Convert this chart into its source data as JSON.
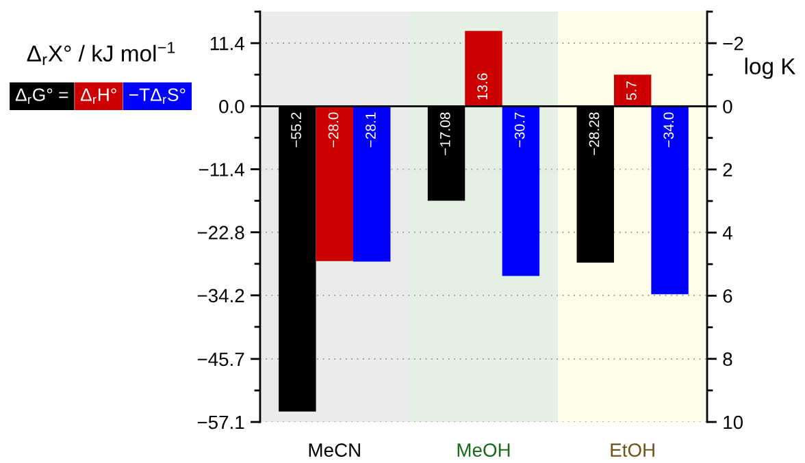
{
  "chart_data": {
    "type": "bar",
    "categories": [
      "MeCN",
      "MeOH",
      "EtOH"
    ],
    "series": [
      {
        "name": "Δ$_{r}$G° =",
        "color": "#000000",
        "values": [
          -55.2,
          -17.08,
          -28.28
        ],
        "value_labels": [
          "−55.2",
          "−17.08",
          "−28.28"
        ]
      },
      {
        "name": "Δ$_{r}$H°",
        "color": "#cc0000",
        "values": [
          -28.0,
          13.6,
          5.7
        ],
        "value_labels": [
          "−28.0",
          "13.6",
          "5.7"
        ]
      },
      {
        "name": "−TΔ$_{r}$S°",
        "color": "#0000ff",
        "values": [
          -28.1,
          -30.7,
          -34.0
        ],
        "value_labels": [
          "−28.1",
          "−30.7",
          "−34.0"
        ]
      }
    ],
    "ylabel": "Δ$_{r}$X° / kJ mol$^{−1}$",
    "y2label": "log K",
    "ylim": [
      -57.1,
      17.1
    ],
    "yticks": [
      {
        "value": 17.1,
        "label": null
      },
      11.4,
      {
        "value": 5.7,
        "label": null
      },
      {
        "value": 0,
        "label": "0.0"
      },
      {
        "value": -5.7,
        "label": null
      },
      {
        "value": -11.4,
        "label": "−11.4"
      },
      {
        "value": -17.1,
        "label": null
      },
      {
        "value": -22.8,
        "label": "−22.8"
      },
      {
        "value": -28.5,
        "label": null
      },
      {
        "value": -34.2,
        "label": "−34.2"
      },
      {
        "value": -39.9,
        "label": null
      },
      {
        "value": -45.7,
        "label": "−45.7"
      },
      {
        "value": -51.4,
        "label": null
      },
      {
        "value": -57.1,
        "label": "−57.1"
      }
    ],
    "y2lim": [
      10,
      -3
    ],
    "y2ticks": [
      {
        "value": -3,
        "label": null
      },
      {
        "value": -2,
        "label": "−2"
      },
      {
        "value": -1,
        "label": null
      },
      0,
      {
        "value": 1,
        "label": null
      },
      2,
      {
        "value": 3,
        "label": null
      },
      4,
      {
        "value": 5,
        "label": null
      },
      6,
      {
        "value": 7,
        "label": null
      },
      8,
      {
        "value": 9,
        "label": null
      },
      10
    ],
    "grid": "y",
    "legend": "left",
    "ref_lines": [
      {
        "axis": "y",
        "value": 0,
        "color": "#000000",
        "line_style": "solid"
      }
    ],
    "bands": [
      {
        "axis": "x",
        "from": "MeCN",
        "to": "MeCN",
        "color": "#ebebeb"
      },
      {
        "axis": "x",
        "from": "MeOH",
        "to": "MeOH",
        "color": "#e5f0e4"
      },
      {
        "axis": "x",
        "from": "EtOH",
        "to": "EtOH",
        "color": "#fefee8"
      }
    ]
  }
}
